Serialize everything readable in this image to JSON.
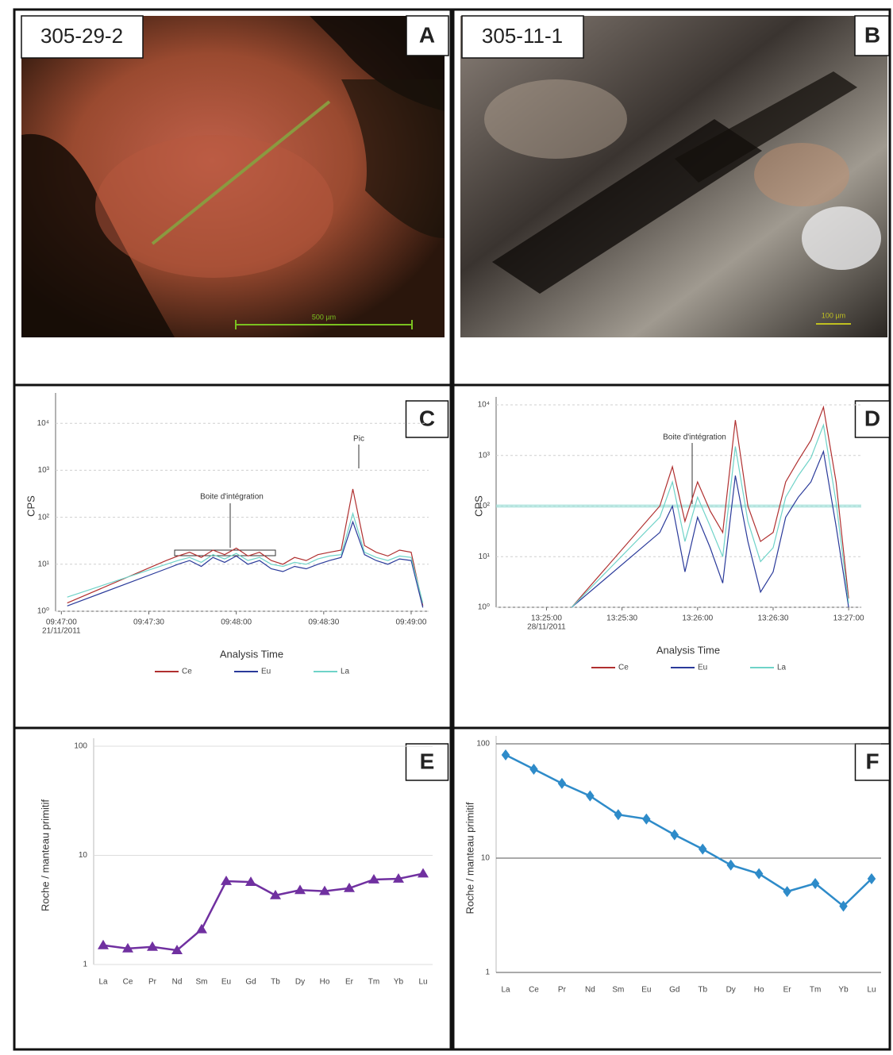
{
  "panels": [
    {
      "letter": "A",
      "sample": "305-29-2",
      "scale_bar": "500 µm"
    },
    {
      "letter": "B",
      "sample": "305-11-1",
      "scale_bar": "100 µm"
    }
  ],
  "chart_data": [
    {
      "type": "line",
      "letter": "C",
      "log_y": true,
      "ylabel": "CPS",
      "xlabel": "Analysis Time",
      "annotations": [
        "Boite d'intégration",
        "Pic"
      ],
      "xlim": [
        "09:46:58",
        "09:49:06"
      ],
      "date": "21/11/2011",
      "xticks": [
        "09:47:00",
        "09:47:30",
        "09:48:00",
        "09:48:30",
        "09:49:00"
      ],
      "ylim": [
        1,
        30000
      ],
      "yticks": [
        {
          "value": 1,
          "label": "10⁰"
        },
        {
          "value": 10,
          "label": "10¹"
        },
        {
          "value": 100,
          "label": "10²"
        },
        {
          "value": 1000,
          "label": "10³"
        },
        {
          "value": 10000,
          "label": "10⁴"
        }
      ],
      "grid_color": "#cfcfcf",
      "x": [
        "09:47:02",
        "09:47:36",
        "09:47:40",
        "09:47:44",
        "09:47:48",
        "09:47:52",
        "09:47:56",
        "09:48:00",
        "09:48:04",
        "09:48:08",
        "09:48:12",
        "09:48:16",
        "09:48:20",
        "09:48:24",
        "09:48:28",
        "09:48:32",
        "09:48:36",
        "09:48:40",
        "09:48:44",
        "09:48:48",
        "09:48:52",
        "09:48:56",
        "09:49:00",
        "09:49:04"
      ],
      "series": [
        {
          "name": "Ce",
          "color": "#b03030",
          "values": [
            1.5,
            12,
            15,
            18,
            14,
            20,
            16,
            22,
            15,
            18,
            12,
            10,
            14,
            12,
            16,
            18,
            20,
            400,
            25,
            18,
            15,
            20,
            18,
            1.3
          ]
        },
        {
          "name": "Eu",
          "color": "#2a3a9a",
          "values": [
            1.3,
            8,
            10,
            12,
            9,
            14,
            11,
            15,
            10,
            12,
            8,
            7,
            9,
            8,
            10,
            12,
            14,
            80,
            16,
            12,
            10,
            13,
            12,
            1.2
          ]
        },
        {
          "name": "La",
          "color": "#6fd3c8",
          "values": [
            2,
            10,
            12,
            14,
            11,
            16,
            13,
            17,
            12,
            14,
            10,
            9,
            11,
            10,
            13,
            15,
            16,
            120,
            18,
            14,
            12,
            15,
            14,
            1.5
          ]
        }
      ]
    },
    {
      "type": "line",
      "letter": "D",
      "log_y": true,
      "ylabel": "CPS",
      "xlabel": "Analysis Time",
      "annotations": [
        "Boite d'intégration"
      ],
      "xlim": [
        "13:24:40",
        "13:27:05"
      ],
      "date": "28/11/2011",
      "xticks": [
        "13:25:00",
        "13:25:30",
        "13:26:00",
        "13:26:30",
        "13:27:00"
      ],
      "ylim": [
        1,
        10000
      ],
      "yticks": [
        {
          "value": 1,
          "label": "10⁰"
        },
        {
          "value": 10,
          "label": "10¹"
        },
        {
          "value": 100,
          "label": "10²"
        },
        {
          "value": 1000,
          "label": "10³"
        },
        {
          "value": 10000,
          "label": "10⁴"
        }
      ],
      "grid_color": "#cfcfcf",
      "x": [
        "13:25:10",
        "13:25:45",
        "13:25:50",
        "13:25:55",
        "13:26:00",
        "13:26:05",
        "13:26:10",
        "13:26:15",
        "13:26:20",
        "13:26:25",
        "13:26:30",
        "13:26:35",
        "13:26:40",
        "13:26:45",
        "13:26:50",
        "13:26:55",
        "13:27:00"
      ],
      "series": [
        {
          "name": "Ce",
          "color": "#b03030",
          "values": [
            1,
            100,
            600,
            50,
            300,
            80,
            30,
            5000,
            100,
            20,
            30,
            300,
            800,
            2000,
            9000,
            300,
            1.5
          ]
        },
        {
          "name": "Eu",
          "color": "#2a3a9a",
          "values": [
            1,
            30,
            100,
            5,
            60,
            15,
            3,
            400,
            20,
            2,
            5,
            60,
            150,
            300,
            1200,
            40,
            1
          ]
        },
        {
          "name": "La",
          "color": "#6fd3c8",
          "values": [
            1,
            60,
            300,
            20,
            150,
            40,
            10,
            1500,
            50,
            8,
            15,
            150,
            400,
            900,
            4000,
            120,
            1.2
          ]
        }
      ]
    },
    {
      "type": "line",
      "letter": "E",
      "log_y": true,
      "marker": "triangle",
      "ylabel": "Roche / manteau primitif",
      "categories": [
        "La",
        "Ce",
        "Pr",
        "Nd",
        "Sm",
        "Eu",
        "Gd",
        "Tb",
        "Dy",
        "Ho",
        "Er",
        "Tm",
        "Yb",
        "Lu"
      ],
      "ylim": [
        1,
        100
      ],
      "yticks": [
        1,
        10,
        100
      ],
      "grid_color": "#dddddd",
      "series": [
        {
          "color": "#7030a0",
          "values": [
            1.5,
            1.4,
            1.45,
            1.35,
            2.1,
            5.8,
            5.7,
            4.3,
            4.8,
            4.7,
            5.0,
            6.0,
            6.1,
            6.8
          ]
        }
      ]
    },
    {
      "type": "line",
      "letter": "F",
      "log_y": true,
      "marker": "diamond",
      "ylabel": "Roche / manteau primitif",
      "categories": [
        "La",
        "Ce",
        "Pr",
        "Nd",
        "Sm",
        "Eu",
        "Gd",
        "Tb",
        "Dy",
        "Ho",
        "Er",
        "Tm",
        "Yb",
        "Lu"
      ],
      "ylim": [
        1,
        100
      ],
      "yticks": [
        1,
        10,
        100
      ],
      "grid_color": "#555555",
      "series": [
        {
          "color": "#2e8bc9",
          "values": [
            80,
            60,
            45,
            35,
            24,
            22,
            16,
            12,
            8.7,
            7.3,
            5.1,
            6.0,
            3.8,
            6.6
          ]
        }
      ]
    }
  ]
}
